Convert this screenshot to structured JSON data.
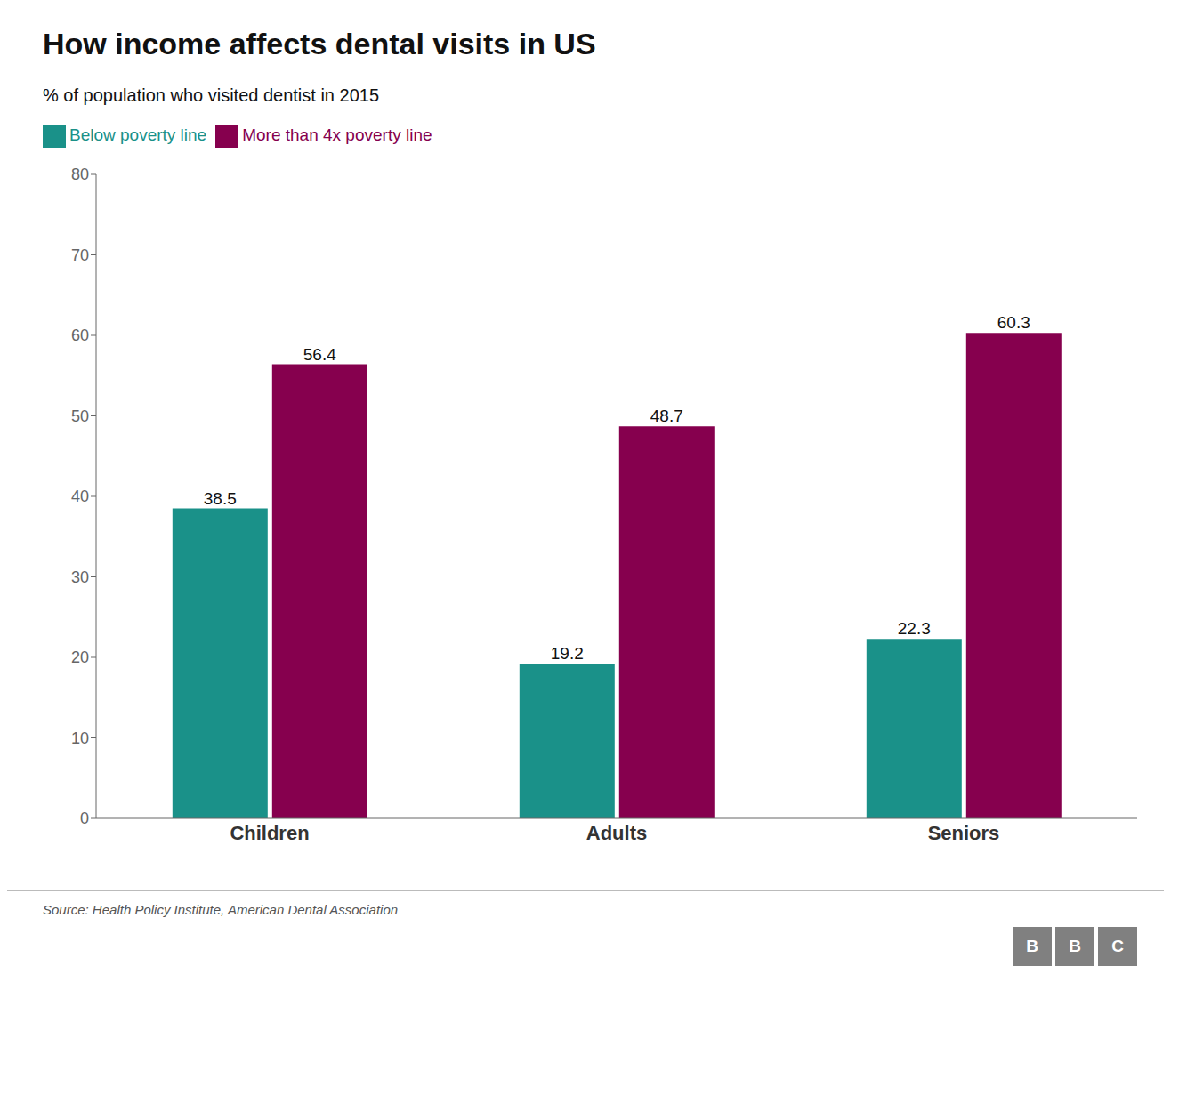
{
  "chart_data": {
    "type": "bar",
    "title": "How income affects dental visits in US",
    "subtitle": "% of population who visited dentist in 2015",
    "categories": [
      "Children",
      "Adults",
      "Seniors"
    ],
    "series": [
      {
        "name": "Below poverty line",
        "color": "#1a9189",
        "values": [
          38.5,
          19.2,
          22.3
        ]
      },
      {
        "name": "More than 4x poverty line",
        "color": "#86004e",
        "values": [
          56.4,
          48.7,
          60.3
        ]
      }
    ],
    "ylim": [
      0,
      80
    ],
    "yticks": [
      0,
      10,
      20,
      30,
      40,
      50,
      60,
      70,
      80
    ],
    "grid": false,
    "legend": "upper left",
    "data_labels": true,
    "annotations": [
      "Source: Health Policy Institute, American Dental Association",
      "B",
      "B",
      "C"
    ]
  }
}
